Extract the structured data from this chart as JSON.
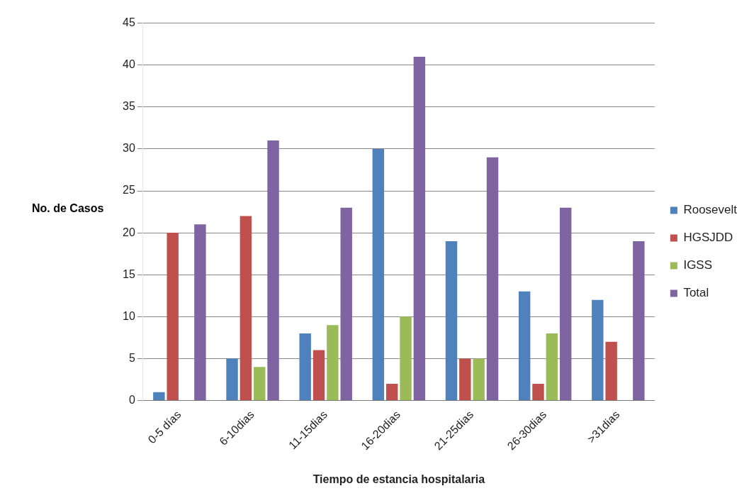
{
  "chart_data": {
    "type": "bar",
    "xlabel": "Tiempo de estancia hospitalaria",
    "ylabel": "No. de Casos",
    "categories": [
      "0-5 días",
      "6-10dias",
      "11-15dias",
      "16-20dias",
      "21-25dias",
      "26-30dias",
      ">31dias"
    ],
    "series": [
      {
        "name": "Roosevelt",
        "color": "#4f81bd",
        "values": [
          1,
          5,
          8,
          30,
          19,
          13,
          12
        ]
      },
      {
        "name": "HGSJDD",
        "color": "#c0504d",
        "values": [
          20,
          22,
          6,
          2,
          5,
          2,
          7
        ]
      },
      {
        "name": "IGSS",
        "color": "#9bbb59",
        "values": [
          0,
          4,
          9,
          10,
          5,
          8,
          0
        ]
      },
      {
        "name": "Total",
        "color": "#8064a2",
        "values": [
          21,
          31,
          23,
          41,
          29,
          23,
          19
        ]
      }
    ],
    "ylim": [
      0,
      45
    ],
    "yticks": [
      0,
      5,
      10,
      15,
      20,
      25,
      30,
      35,
      40,
      45
    ],
    "grid": "y",
    "legend": "right"
  }
}
